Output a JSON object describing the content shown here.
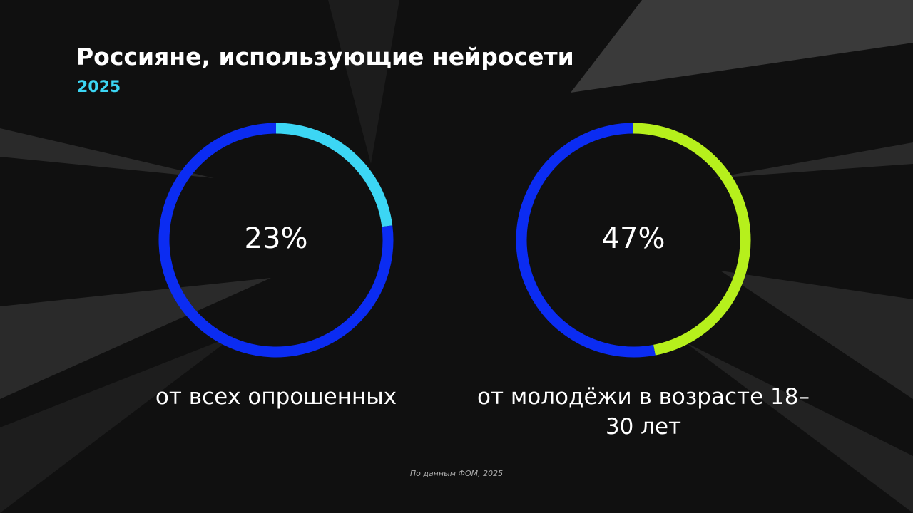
{
  "title": "Россияне, использующие нейросети",
  "subtitle": "2025",
  "source": "По данным ФОМ, 2025",
  "chart_data": [
    {
      "type": "donut",
      "label": "от всех опрошенных",
      "values": [
        23,
        77
      ],
      "value_labels": [
        "23%",
        null
      ],
      "colors": [
        "#3cd6f4",
        "#0b2cf2"
      ]
    },
    {
      "type": "donut",
      "label": "от молодёжи в возрасте 18–30 лет",
      "values": [
        47,
        53
      ],
      "value_labels": [
        "47%",
        null
      ],
      "colors": [
        "#b6f01c",
        "#0b2cf2"
      ]
    }
  ]
}
